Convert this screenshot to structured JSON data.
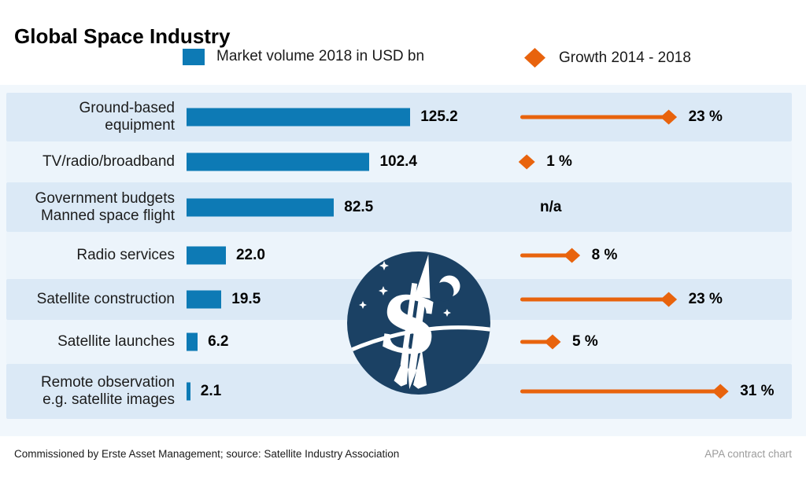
{
  "title": "Global Space Industry",
  "legend": {
    "market_label": "Market volume 2018 in USD bn",
    "growth_label": "Growth 2014 - 2018"
  },
  "colors": {
    "bar_blue": "#0d7ab5",
    "growth_orange": "#e8630d",
    "band_dark": "#dbe9f6",
    "band_light": "#ecf4fb",
    "panel_bg": "#f1f7fc",
    "logo_navy": "#1b4164"
  },
  "chart_data": {
    "type": "bar",
    "title": "Global Space Industry",
    "orientation": "horizontal",
    "grid": false,
    "legend_position": "top",
    "series": [
      {
        "name": "Market volume 2018 in USD bn",
        "unit": "USD bn",
        "color": "#0d7ab5",
        "values": [
          125.2,
          102.4,
          82.5,
          22.0,
          19.5,
          6.2,
          2.1
        ]
      },
      {
        "name": "Growth 2014 - 2018",
        "unit": "%",
        "color": "#e8630d",
        "values": [
          23,
          1,
          null,
          8,
          23,
          5,
          31
        ]
      }
    ],
    "categories": [
      "Ground-based equipment",
      "TV/radio/broadband",
      "Government budgets Manned space flight",
      "Radio services",
      "Satellite construction",
      "Satellite launches",
      "Remote observation e.g. satellite images"
    ],
    "rows": [
      {
        "label_lines": [
          "Ground-based",
          "equipment"
        ],
        "value": 125.2,
        "value_label": "125.2",
        "growth": 23,
        "growth_label": "23 %"
      },
      {
        "label_lines": [
          "TV/radio/broadband"
        ],
        "value": 102.4,
        "value_label": "102.4",
        "growth": 1,
        "growth_label": "1 %"
      },
      {
        "label_lines": [
          "Government budgets",
          "Manned space flight"
        ],
        "value": 82.5,
        "value_label": "82.5",
        "growth": null,
        "growth_label": "n/a"
      },
      {
        "label_lines": [
          "Radio services"
        ],
        "value": 22.0,
        "value_label": "22.0",
        "growth": 8,
        "growth_label": "8 %"
      },
      {
        "label_lines": [
          "Satellite construction"
        ],
        "value": 19.5,
        "value_label": "19.5",
        "growth": 23,
        "growth_label": "23 %"
      },
      {
        "label_lines": [
          "Satellite launches"
        ],
        "value": 6.2,
        "value_label": "6.2",
        "growth": 5,
        "growth_label": "5 %"
      },
      {
        "label_lines": [
          "Remote observation",
          "e.g. satellite images"
        ],
        "value": 2.1,
        "value_label": "2.1",
        "growth": 31,
        "growth_label": "31 %"
      }
    ]
  },
  "logo": {
    "description": "dollar-sign rocket in night sky circle",
    "dollar_glyph": "$"
  },
  "footer": {
    "source": "Commissioned by Erste Asset Management; source: Satellite Industry Association",
    "credit": "APA contract chart"
  }
}
